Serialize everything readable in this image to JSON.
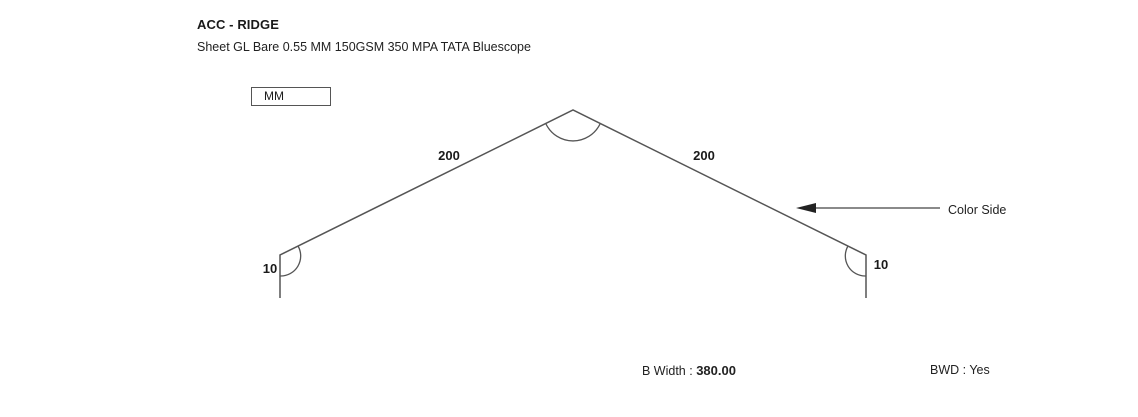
{
  "header": {
    "title": "ACC - RIDGE",
    "subtitle": "Sheet GL Bare 0.55 MM 150GSM 350 MPA TATA Bluescope"
  },
  "units": {
    "label": "MM"
  },
  "diagram": {
    "segments": {
      "left_slope": "200",
      "right_slope": "200",
      "left_return": "10",
      "right_return": "10"
    },
    "color_side_label": "Color Side"
  },
  "footer": {
    "b_width_label": "B Width :",
    "b_width_value": "380.00",
    "bwd_label": "BWD : Yes"
  }
}
